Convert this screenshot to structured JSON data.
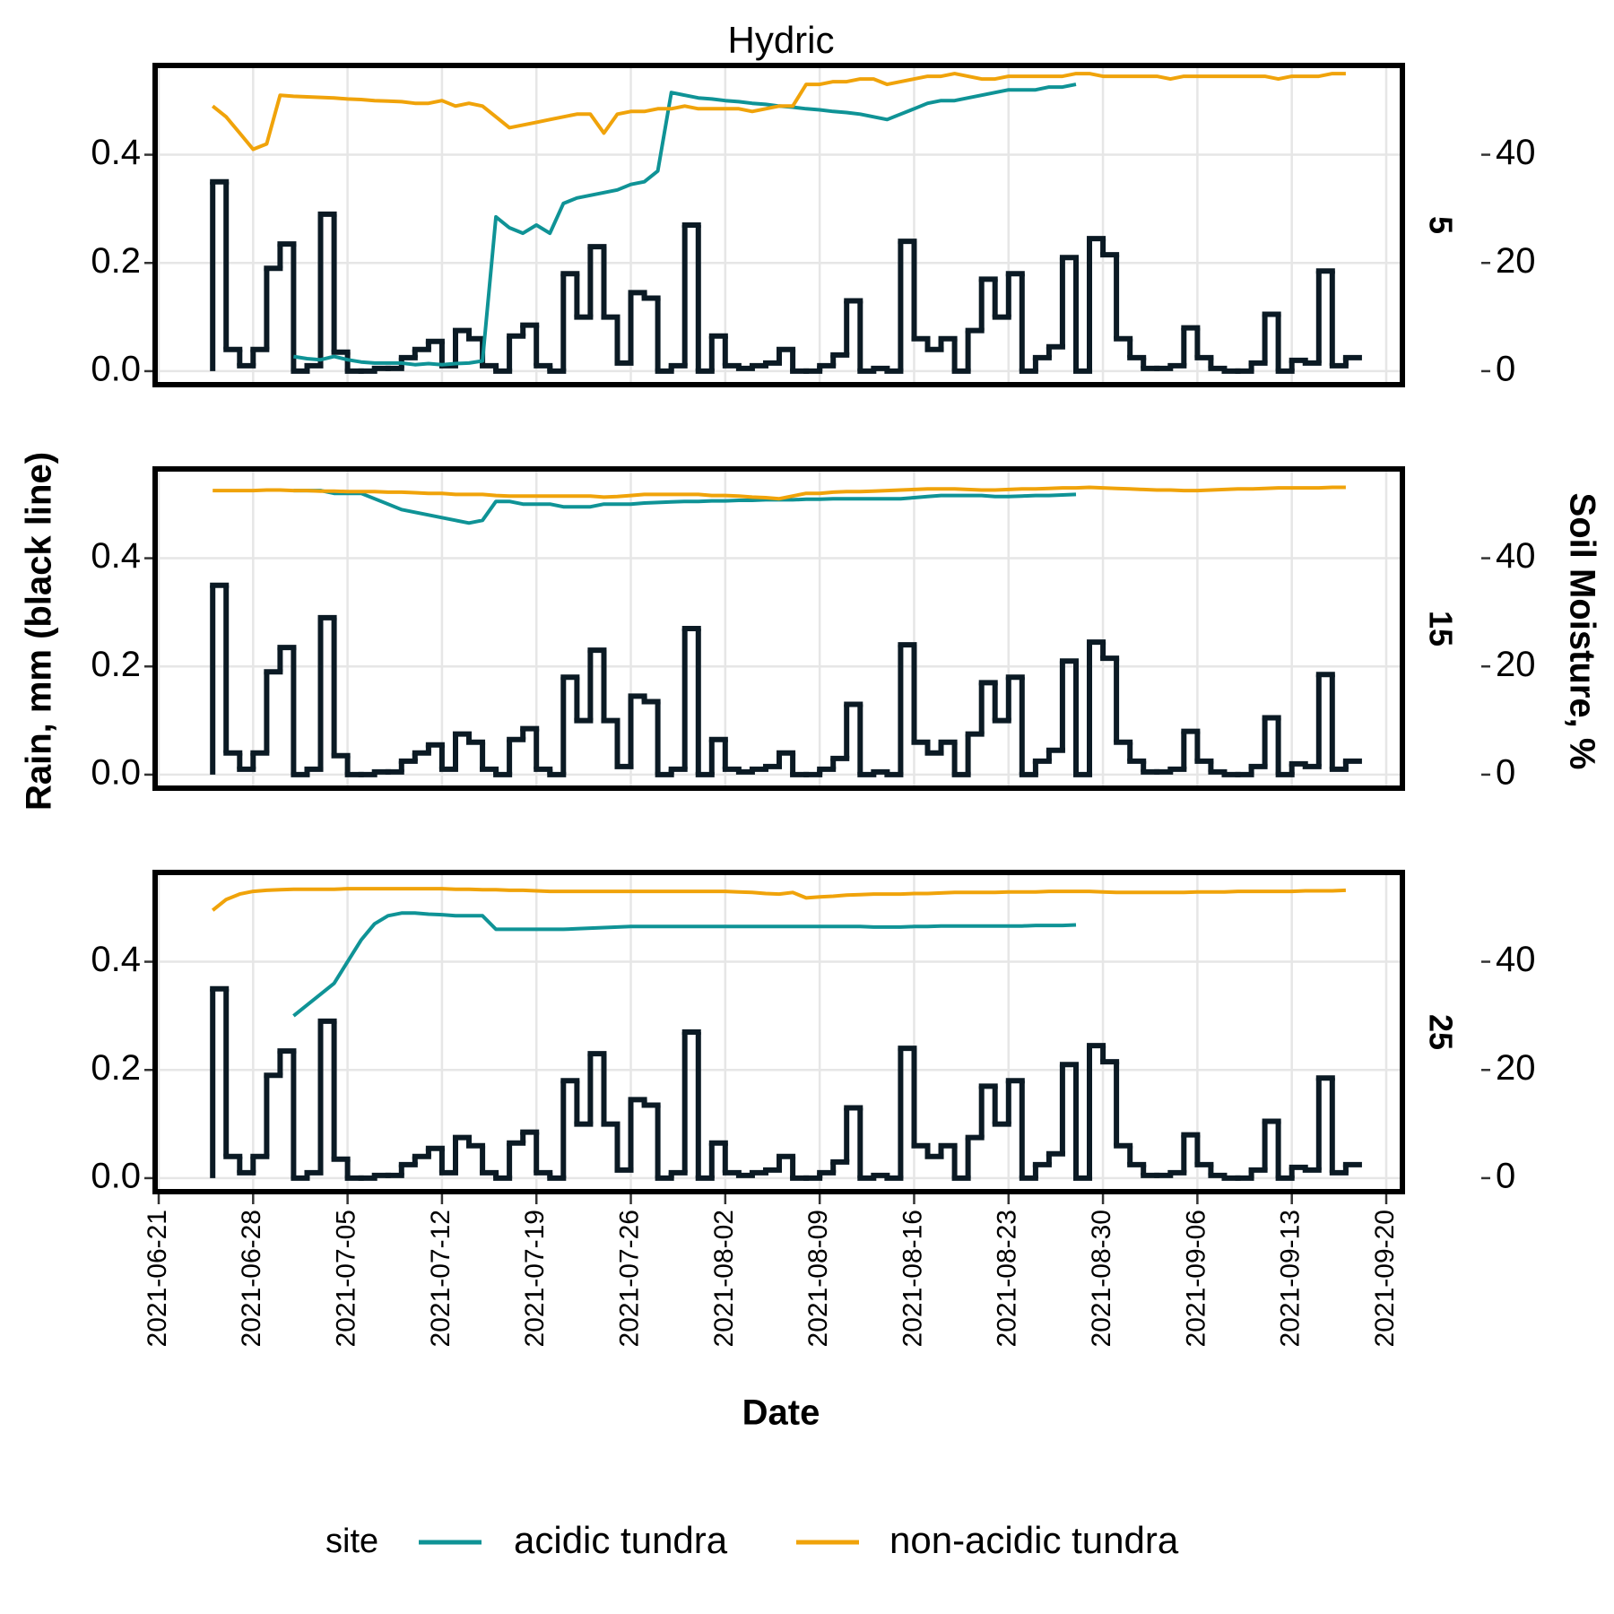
{
  "chart_data": {
    "type": "line",
    "title": "Hydric",
    "x_label": "Date",
    "y_label": "Rain, mm (black line)",
    "y2_label": "Soil Moisture, %",
    "legend_title": "site",
    "grid": true,
    "x": [
      "2021-06-25",
      "2021-06-26",
      "2021-06-27",
      "2021-06-28",
      "2021-06-29",
      "2021-06-30",
      "2021-07-01",
      "2021-07-02",
      "2021-07-03",
      "2021-07-04",
      "2021-07-05",
      "2021-07-06",
      "2021-07-07",
      "2021-07-08",
      "2021-07-09",
      "2021-07-10",
      "2021-07-11",
      "2021-07-12",
      "2021-07-13",
      "2021-07-14",
      "2021-07-15",
      "2021-07-16",
      "2021-07-17",
      "2021-07-18",
      "2021-07-19",
      "2021-07-20",
      "2021-07-21",
      "2021-07-22",
      "2021-07-23",
      "2021-07-24",
      "2021-07-25",
      "2021-07-26",
      "2021-07-27",
      "2021-07-28",
      "2021-07-29",
      "2021-07-30",
      "2021-07-31",
      "2021-08-01",
      "2021-08-02",
      "2021-08-03",
      "2021-08-04",
      "2021-08-05",
      "2021-08-06",
      "2021-08-07",
      "2021-08-08",
      "2021-08-09",
      "2021-08-10",
      "2021-08-11",
      "2021-08-12",
      "2021-08-13",
      "2021-08-14",
      "2021-08-15",
      "2021-08-16",
      "2021-08-17",
      "2021-08-18",
      "2021-08-19",
      "2021-08-20",
      "2021-08-21",
      "2021-08-22",
      "2021-08-23",
      "2021-08-24",
      "2021-08-25",
      "2021-08-26",
      "2021-08-27",
      "2021-08-28",
      "2021-08-29",
      "2021-08-30",
      "2021-08-31",
      "2021-09-01",
      "2021-09-02",
      "2021-09-03",
      "2021-09-04",
      "2021-09-05",
      "2021-09-06",
      "2021-09-07",
      "2021-09-08",
      "2021-09-09",
      "2021-09-10",
      "2021-09-11",
      "2021-09-12",
      "2021-09-13",
      "2021-09-14",
      "2021-09-15",
      "2021-09-16",
      "2021-09-17"
    ],
    "xlim": [
      "2021-06-21",
      "2021-09-20"
    ],
    "xticks": [
      "2021-06-21",
      "2021-06-28",
      "2021-07-05",
      "2021-07-12",
      "2021-07-19",
      "2021-07-26",
      "2021-08-02",
      "2021-08-09",
      "2021-08-16",
      "2021-08-23",
      "2021-08-30",
      "2021-09-06",
      "2021-09-13",
      "2021-09-20"
    ],
    "ylim": [
      -0.025,
      0.565
    ],
    "yticks": [
      {
        "value": 0,
        "label": "0.0"
      },
      0.2,
      0.4
    ],
    "y2lim": [
      -2.5,
      56.5
    ],
    "y2ticks": [
      0,
      20,
      40
    ],
    "rain": {
      "color": "#0b1a24",
      "values": [
        0.35,
        0.04,
        0.01,
        0.04,
        0.19,
        0.235,
        0,
        0.01,
        0.29,
        0.035,
        0,
        0,
        0.005,
        0.005,
        0.025,
        0.04,
        0.055,
        0.01,
        0.075,
        0.06,
        0.01,
        0,
        0.065,
        0.085,
        0.01,
        0,
        0.18,
        0.1,
        0.23,
        0.1,
        0.015,
        0.145,
        0.135,
        0,
        0.01,
        0.27,
        0,
        0.065,
        0.01,
        0.005,
        0.01,
        0.015,
        0.04,
        0,
        0,
        0.01,
        0.03,
        0.13,
        0,
        0.005,
        0,
        0.24,
        0.06,
        0.04,
        0.06,
        0,
        0.075,
        0.17,
        0.1,
        0.18,
        0,
        0.025,
        0.045,
        0.21,
        0,
        0.245,
        0.215,
        0.06,
        0.025,
        0.005,
        0.005,
        0.01,
        0.08,
        0.025,
        0.005,
        0,
        0,
        0.015,
        0.105,
        0,
        0.02,
        0.015,
        0.185,
        0.01,
        0.025
      ]
    },
    "facets": [
      {
        "label": "5",
        "series": [
          {
            "name": "acidic tundra",
            "color": "#0f9396",
            "axis": "y2",
            "values": [
              null,
              null,
              null,
              null,
              null,
              null,
              2.7,
              2.3,
              2.1,
              2.7,
              2.1,
              1.7,
              1.5,
              1.5,
              1.5,
              1.2,
              1.4,
              1.2,
              1.4,
              1.5,
              1.9,
              28.5,
              26.5,
              25.5,
              27,
              25.5,
              31,
              32,
              32.5,
              33,
              33.5,
              34.5,
              35,
              37,
              51.5,
              51,
              50.5,
              50.3,
              50,
              49.8,
              49.5,
              49.3,
              49,
              48.8,
              48.5,
              48.3,
              48,
              47.8,
              47.5,
              47,
              46.5,
              47.5,
              48.5,
              49.5,
              50,
              50,
              50.5,
              51,
              51.5,
              52,
              52,
              52,
              52.5,
              52.5,
              53,
              null,
              null,
              null,
              null,
              null,
              null,
              null,
              null,
              null,
              null,
              null,
              null,
              null,
              null,
              null,
              null,
              null,
              null,
              null,
              null
            ]
          },
          {
            "name": "non-acidic tundra",
            "color": "#f0a30a",
            "axis": "y2",
            "values": [
              49,
              47,
              44,
              41,
              42,
              51,
              50.8,
              50.7,
              50.6,
              50.5,
              50.3,
              50.2,
              50,
              49.9,
              49.8,
              49.5,
              49.5,
              50,
              49,
              49.5,
              49,
              47,
              45,
              45.5,
              46,
              46.5,
              47,
              47.5,
              47.5,
              44,
              47.5,
              48,
              48,
              48.5,
              48.5,
              49,
              48.5,
              48.5,
              48.5,
              48.5,
              48,
              48.5,
              49,
              49,
              53,
              53,
              53.5,
              53.5,
              54,
              54,
              53,
              53.5,
              54,
              54.5,
              54.5,
              55,
              54.5,
              54,
              54,
              54.5,
              54.5,
              54.5,
              54.5,
              54.5,
              55,
              55,
              54.5,
              54.5,
              54.5,
              54.5,
              54.5,
              54,
              54.5,
              54.5,
              54.5,
              54.5,
              54.5,
              54.5,
              54.5,
              54,
              54.5,
              54.5,
              54.5,
              55,
              55
            ]
          }
        ]
      },
      {
        "label": "15",
        "series": [
          {
            "name": "acidic tundra",
            "color": "#0f9396",
            "axis": "y2",
            "values": [
              null,
              null,
              null,
              null,
              null,
              null,
              52.5,
              52.5,
              52.5,
              52,
              52,
              52,
              51,
              50,
              49,
              48.5,
              48,
              47.5,
              47,
              46.5,
              47,
              50.5,
              50.5,
              50,
              50,
              50,
              49.5,
              49.5,
              49.5,
              50,
              50,
              50,
              50.2,
              50.3,
              50.4,
              50.5,
              50.5,
              50.6,
              50.6,
              50.7,
              50.7,
              50.8,
              50.8,
              50.8,
              50.9,
              50.9,
              51,
              51,
              51,
              51,
              51,
              51,
              51.2,
              51.4,
              51.6,
              51.6,
              51.6,
              51.6,
              51.4,
              51.4,
              51.5,
              51.6,
              51.6,
              51.7,
              51.8,
              null,
              null,
              null,
              null,
              null,
              null,
              null,
              null,
              null,
              null,
              null,
              null,
              null,
              null,
              null,
              null,
              null,
              null,
              null,
              null
            ]
          },
          {
            "name": "non-acidic tundra",
            "color": "#f0a30a",
            "axis": "y2",
            "values": [
              52.5,
              52.5,
              52.5,
              52.5,
              52.6,
              52.6,
              52.5,
              52.5,
              52.4,
              52.4,
              52.3,
              52.3,
              52.3,
              52.2,
              52.2,
              52.1,
              52,
              52,
              51.8,
              51.8,
              51.8,
              51.6,
              51.5,
              51.5,
              51.5,
              51.5,
              51.5,
              51.5,
              51.5,
              51.3,
              51.4,
              51.6,
              51.8,
              51.8,
              51.8,
              51.8,
              51.8,
              51.6,
              51.6,
              51.5,
              51.3,
              51.2,
              51,
              51.5,
              52,
              52,
              52.2,
              52.3,
              52.3,
              52.4,
              52.5,
              52.6,
              52.7,
              52.8,
              52.8,
              52.8,
              52.7,
              52.6,
              52.6,
              52.7,
              52.8,
              52.8,
              52.9,
              53,
              53,
              53.1,
              53,
              52.9,
              52.8,
              52.7,
              52.6,
              52.6,
              52.5,
              52.5,
              52.6,
              52.7,
              52.8,
              52.8,
              52.9,
              53,
              53,
              53,
              53,
              53.1,
              53.1
            ]
          }
        ]
      },
      {
        "label": "25",
        "series": [
          {
            "name": "acidic tundra",
            "color": "#0f9396",
            "axis": "y2",
            "values": [
              null,
              null,
              null,
              null,
              null,
              null,
              30,
              32,
              34,
              36,
              40,
              44,
              47,
              48.5,
              49,
              49,
              48.8,
              48.7,
              48.5,
              48.5,
              48.5,
              46,
              46,
              46,
              46,
              46,
              46,
              46.1,
              46.2,
              46.3,
              46.4,
              46.5,
              46.5,
              46.5,
              46.5,
              46.5,
              46.5,
              46.5,
              46.5,
              46.5,
              46.5,
              46.5,
              46.5,
              46.5,
              46.5,
              46.5,
              46.5,
              46.5,
              46.5,
              46.4,
              46.4,
              46.4,
              46.5,
              46.5,
              46.6,
              46.6,
              46.6,
              46.6,
              46.6,
              46.6,
              46.6,
              46.7,
              46.7,
              46.7,
              46.8,
              null,
              null,
              null,
              null,
              null,
              null,
              null,
              null,
              null,
              null,
              null,
              null,
              null,
              null,
              null,
              null,
              null,
              null,
              null,
              null
            ]
          },
          {
            "name": "non-acidic tundra",
            "color": "#f0a30a",
            "axis": "y2",
            "values": [
              49.5,
              51.5,
              52.5,
              53,
              53.2,
              53.3,
              53.4,
              53.4,
              53.4,
              53.4,
              53.5,
              53.5,
              53.5,
              53.5,
              53.5,
              53.5,
              53.5,
              53.5,
              53.4,
              53.4,
              53.3,
              53.3,
              53.2,
              53.2,
              53.1,
              53,
              53,
              53,
              53,
              53,
              53,
              53,
              53,
              53,
              53,
              53,
              53,
              53,
              53,
              52.9,
              52.8,
              52.6,
              52.5,
              52.8,
              51.8,
              52,
              52.1,
              52.3,
              52.4,
              52.5,
              52.5,
              52.5,
              52.6,
              52.6,
              52.7,
              52.8,
              52.8,
              52.8,
              52.8,
              52.9,
              52.9,
              52.9,
              53,
              53,
              53,
              53,
              52.9,
              52.8,
              52.8,
              52.8,
              52.8,
              52.8,
              52.8,
              52.9,
              52.9,
              52.9,
              53,
              53,
              53,
              53,
              53,
              53.1,
              53.1,
              53.1,
              53.2
            ]
          }
        ]
      }
    ]
  }
}
